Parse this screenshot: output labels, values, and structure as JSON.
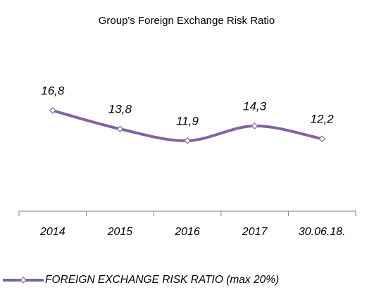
{
  "chart_data": {
    "type": "line",
    "title": "Group's Foreign Exchange Risk Ratio",
    "categories": [
      "2014",
      "2015",
      "2016",
      "2017",
      "30.06.18."
    ],
    "series": [
      {
        "name": "FOREIGN EXCHANGE RISK RATIO (max 20%)",
        "color": "#8064a2",
        "values": [
          16.8,
          13.8,
          11.9,
          14.3,
          12.2
        ],
        "value_labels": [
          "16,8",
          "13,8",
          "11,9",
          "14,3",
          "12,2"
        ]
      }
    ],
    "ylim": [
      0,
      20
    ],
    "legend": "bottom"
  }
}
